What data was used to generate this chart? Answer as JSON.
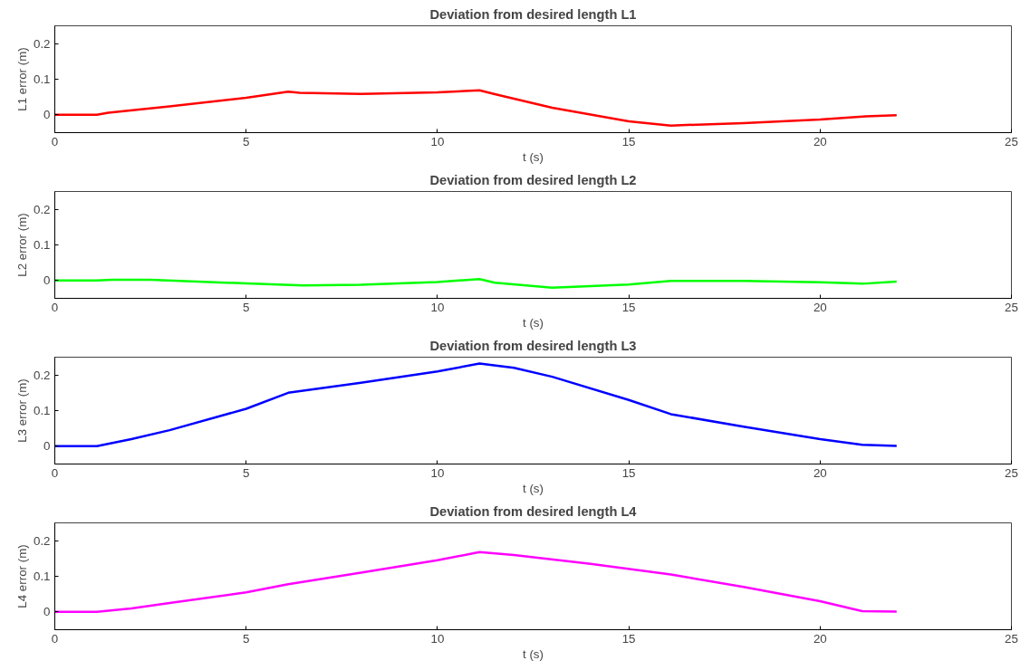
{
  "chart_data": [
    {
      "type": "line",
      "title": "Deviation from desired length L1",
      "xlabel": "t (s)",
      "ylabel": "L1 error (m)",
      "xlim": [
        0,
        25
      ],
      "xticks": [
        0,
        5,
        10,
        15,
        20,
        25
      ],
      "ylim": [
        -0.05,
        0.25
      ],
      "yticks": [
        0,
        0.1,
        0.2
      ],
      "grid": false,
      "series": [
        {
          "color": "#ff0000",
          "x": [
            0,
            1.1,
            1.4,
            3,
            5,
            6.1,
            6.4,
            8,
            10,
            11.1,
            11.5,
            13,
            15,
            16.1,
            18,
            20,
            21.2,
            22
          ],
          "values": [
            0,
            0,
            0.006,
            0.024,
            0.048,
            0.065,
            0.062,
            0.059,
            0.063,
            0.069,
            0.058,
            0.02,
            -0.018,
            -0.03,
            -0.023,
            -0.013,
            -0.004,
            -0.001
          ]
        }
      ]
    },
    {
      "type": "line",
      "title": "Deviation from desired length L2",
      "xlabel": "t (s)",
      "ylabel": "L2 error (m)",
      "xlim": [
        0,
        25
      ],
      "xticks": [
        0,
        5,
        10,
        15,
        20,
        25
      ],
      "ylim": [
        -0.05,
        0.25
      ],
      "yticks": [
        0,
        0.1,
        0.2
      ],
      "grid": false,
      "series": [
        {
          "color": "#00ff00",
          "x": [
            0,
            1.1,
            1.5,
            2.5,
            5,
            6.5,
            8,
            10,
            11.1,
            11.5,
            13,
            15,
            16.1,
            18,
            20,
            21.1,
            22
          ],
          "values": [
            0,
            0,
            0.002,
            0.002,
            -0.008,
            -0.014,
            -0.012,
            -0.004,
            0.004,
            -0.006,
            -0.02,
            -0.011,
            -0.001,
            -0.001,
            -0.005,
            -0.009,
            -0.003
          ]
        }
      ]
    },
    {
      "type": "line",
      "title": "Deviation from desired length L3",
      "xlabel": "t (s)",
      "ylabel": "L3 error (m)",
      "xlim": [
        0,
        25
      ],
      "xticks": [
        0,
        5,
        10,
        15,
        20,
        25
      ],
      "ylim": [
        -0.05,
        0.25
      ],
      "yticks": [
        0,
        0.1,
        0.2
      ],
      "grid": false,
      "series": [
        {
          "color": "#0000ff",
          "x": [
            0,
            1.1,
            2,
            3,
            5,
            6.1,
            8,
            10,
            11.1,
            12,
            13,
            15,
            16.1,
            18,
            20,
            21.1,
            22
          ],
          "values": [
            0,
            0,
            0.02,
            0.045,
            0.105,
            0.15,
            0.178,
            0.21,
            0.232,
            0.22,
            0.195,
            0.13,
            0.09,
            0.055,
            0.02,
            0.004,
            0.001
          ]
        }
      ]
    },
    {
      "type": "line",
      "title": "Deviation from desired length L4",
      "xlabel": "t (s)",
      "ylabel": "L4 error (m)",
      "xlim": [
        0,
        25
      ],
      "xticks": [
        0,
        5,
        10,
        15,
        20,
        25
      ],
      "ylim": [
        -0.05,
        0.25
      ],
      "yticks": [
        0,
        0.1,
        0.2
      ],
      "grid": false,
      "series": [
        {
          "color": "#ff00ff",
          "x": [
            0,
            1.1,
            2,
            3,
            5,
            6.1,
            8,
            10,
            11.1,
            12,
            14,
            16.1,
            18,
            20,
            21.1,
            22
          ],
          "values": [
            0,
            0,
            0.01,
            0.025,
            0.055,
            0.078,
            0.11,
            0.145,
            0.168,
            0.16,
            0.135,
            0.105,
            0.07,
            0.03,
            0.002,
            0.001
          ]
        }
      ]
    }
  ]
}
